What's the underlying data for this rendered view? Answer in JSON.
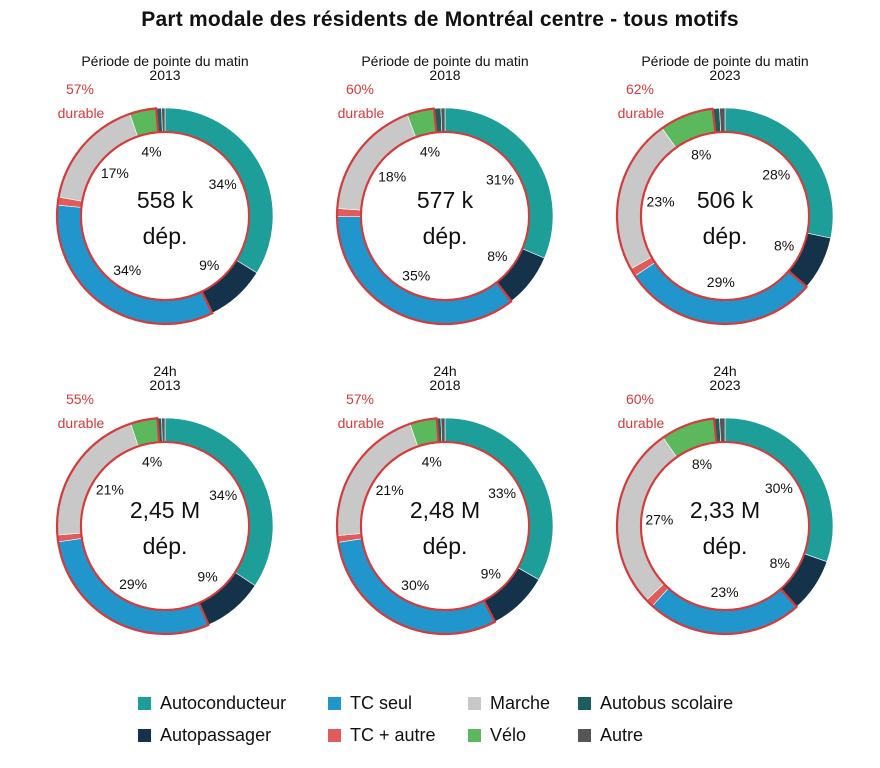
{
  "title": "Part modale des résidents de Montréal centre - tous motifs",
  "colors": {
    "Autoconducteur": "#1e9e98",
    "Autopassager": "#14334a",
    "TC seul": "#2196cc",
    "TC + autre": "#e05c5c",
    "Marche": "#c8c8c8",
    "Vélo": "#5cb85c",
    "Autobus scolaire": "#1a5e60",
    "Autre": "#555555",
    "durable_outline": "#d63a3a",
    "durable_text": "#d63a3a"
  },
  "legend": [
    {
      "label": "Autoconducteur",
      "key": "Autoconducteur"
    },
    {
      "label": "TC seul",
      "key": "TC seul"
    },
    {
      "label": "Marche",
      "key": "Marche"
    },
    {
      "label": "Autobus scolaire",
      "key": "Autobus scolaire"
    },
    {
      "label": "Autopassager",
      "key": "Autopassager"
    },
    {
      "label": "TC + autre",
      "key": "TC + autre"
    },
    {
      "label": "Vélo",
      "key": "Vélo"
    },
    {
      "label": "Autre",
      "key": "Autre"
    }
  ],
  "chart_data": [
    {
      "type": "pie",
      "title": "Période de pointe du matin",
      "subtitle": "2013",
      "center_value": "558 k",
      "center_unit": "dép.",
      "durable_pct": "57%",
      "durable_label": "durable",
      "slices": [
        {
          "name": "Autoconducteur",
          "value": 34,
          "label": "34%"
        },
        {
          "name": "Autopassager",
          "value": 9,
          "label": "9%"
        },
        {
          "name": "TC seul",
          "value": 34,
          "label": "34%"
        },
        {
          "name": "TC + autre",
          "value": 1.2,
          "label": ""
        },
        {
          "name": "Marche",
          "value": 17,
          "label": "17%"
        },
        {
          "name": "Vélo",
          "value": 4,
          "label": "4%"
        },
        {
          "name": "Autobus scolaire",
          "value": 0.8,
          "label": ""
        },
        {
          "name": "Autre",
          "value": 0.5,
          "label": ""
        }
      ]
    },
    {
      "type": "pie",
      "title": "Période de pointe du matin",
      "subtitle": "2018",
      "center_value": "577 k",
      "center_unit": "dép.",
      "durable_pct": "60%",
      "durable_label": "durable",
      "slices": [
        {
          "name": "Autoconducteur",
          "value": 31,
          "label": "31%"
        },
        {
          "name": "Autopassager",
          "value": 8,
          "label": "8%"
        },
        {
          "name": "TC seul",
          "value": 35,
          "label": "35%"
        },
        {
          "name": "TC + autre",
          "value": 1.2,
          "label": ""
        },
        {
          "name": "Marche",
          "value": 18,
          "label": "18%"
        },
        {
          "name": "Vélo",
          "value": 4,
          "label": "4%"
        },
        {
          "name": "Autobus scolaire",
          "value": 1,
          "label": ""
        },
        {
          "name": "Autre",
          "value": 0.6,
          "label": ""
        }
      ]
    },
    {
      "type": "pie",
      "title": "Période de pointe du matin",
      "subtitle": "2023",
      "center_value": "506 k",
      "center_unit": "dép.",
      "durable_pct": "62%",
      "durable_label": "durable",
      "slices": [
        {
          "name": "Autoconducteur",
          "value": 28,
          "label": "28%"
        },
        {
          "name": "Autopassager",
          "value": 8,
          "label": "8%"
        },
        {
          "name": "TC seul",
          "value": 29,
          "label": "29%"
        },
        {
          "name": "TC + autre",
          "value": 1.2,
          "label": ""
        },
        {
          "name": "Marche",
          "value": 23,
          "label": "23%"
        },
        {
          "name": "Vélo",
          "value": 8,
          "label": "8%"
        },
        {
          "name": "Autobus scolaire",
          "value": 1,
          "label": ""
        },
        {
          "name": "Autre",
          "value": 0.8,
          "label": ""
        }
      ]
    },
    {
      "type": "pie",
      "title": "24h",
      "subtitle": "2013",
      "center_value": "2,45 M",
      "center_unit": "dép.",
      "durable_pct": "55%",
      "durable_label": "durable",
      "slices": [
        {
          "name": "Autoconducteur",
          "value": 34,
          "label": "34%"
        },
        {
          "name": "Autopassager",
          "value": 9,
          "label": "9%"
        },
        {
          "name": "TC seul",
          "value": 29,
          "label": "29%"
        },
        {
          "name": "TC + autre",
          "value": 1,
          "label": ""
        },
        {
          "name": "Marche",
          "value": 21,
          "label": "21%"
        },
        {
          "name": "Vélo",
          "value": 4,
          "label": "4%"
        },
        {
          "name": "Autobus scolaire",
          "value": 0.6,
          "label": ""
        },
        {
          "name": "Autre",
          "value": 0.5,
          "label": ""
        }
      ]
    },
    {
      "type": "pie",
      "title": "24h",
      "subtitle": "2018",
      "center_value": "2,48 M",
      "center_unit": "dép.",
      "durable_pct": "57%",
      "durable_label": "durable",
      "slices": [
        {
          "name": "Autoconducteur",
          "value": 33,
          "label": "33%"
        },
        {
          "name": "Autopassager",
          "value": 9,
          "label": "9%"
        },
        {
          "name": "TC seul",
          "value": 30,
          "label": "30%"
        },
        {
          "name": "TC + autre",
          "value": 1,
          "label": ""
        },
        {
          "name": "Marche",
          "value": 21,
          "label": "21%"
        },
        {
          "name": "Vélo",
          "value": 4,
          "label": "4%"
        },
        {
          "name": "Autobus scolaire",
          "value": 0.6,
          "label": ""
        },
        {
          "name": "Autre",
          "value": 0.6,
          "label": ""
        }
      ]
    },
    {
      "type": "pie",
      "title": "24h",
      "subtitle": "2023",
      "center_value": "2,33 M",
      "center_unit": "dép.",
      "durable_pct": "60%",
      "durable_label": "durable",
      "slices": [
        {
          "name": "Autoconducteur",
          "value": 30,
          "label": "30%"
        },
        {
          "name": "Autopassager",
          "value": 8,
          "label": "8%"
        },
        {
          "name": "TC seul",
          "value": 23,
          "label": "23%"
        },
        {
          "name": "TC + autre",
          "value": 1.2,
          "label": ""
        },
        {
          "name": "Marche",
          "value": 27,
          "label": "27%"
        },
        {
          "name": "Vélo",
          "value": 8,
          "label": "8%"
        },
        {
          "name": "Autobus scolaire",
          "value": 0.8,
          "label": ""
        },
        {
          "name": "Autre",
          "value": 0.8,
          "label": ""
        }
      ]
    }
  ]
}
